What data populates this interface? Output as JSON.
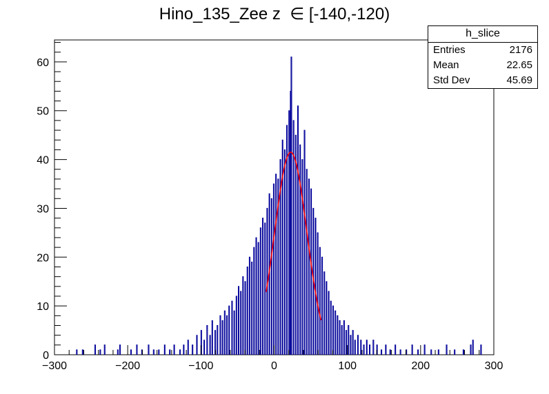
{
  "chart_data": {
    "type": "histogram",
    "title_main": "Hino_135_Zee z",
    "title_symbol": "∈",
    "title_range": "[-140,-120)",
    "xlim": [
      -300,
      300
    ],
    "ylim": [
      0,
      64.5
    ],
    "x_ticks": [
      -300,
      -200,
      -100,
      0,
      100,
      200,
      300
    ],
    "x_tick_labels": [
      "−300",
      "−200",
      "−100",
      "0",
      "100",
      "200",
      "300"
    ],
    "y_ticks": [
      0,
      10,
      20,
      30,
      40,
      50,
      60
    ],
    "y_tick_labels": [
      "0",
      "10",
      "20",
      "30",
      "40",
      "50",
      "60"
    ],
    "bin_width": 1,
    "series": [
      {
        "kind": "histogram",
        "color": "#000099",
        "center": 22.65,
        "sigma": 22,
        "peak": 41.5,
        "bins_x": [
          -270,
          -262,
          -245,
          -238,
          -232,
          -214,
          -211,
          -196,
          -188,
          -181,
          -172,
          -165,
          -158,
          -150,
          -143,
          -137,
          -129,
          -124,
          -118,
          -112,
          -106,
          -100,
          -96,
          -92,
          -88,
          -85,
          -81,
          -78,
          -74,
          -71,
          -68,
          -65,
          -62,
          -58,
          -55,
          -52,
          -49,
          -46,
          -43,
          -40,
          -37,
          -34,
          -31,
          -28,
          -25,
          -22,
          -19,
          -16,
          -13,
          -10,
          -7,
          -4,
          -1,
          2,
          5,
          8,
          11,
          14,
          17,
          20,
          22,
          23,
          26,
          29,
          32,
          35,
          38,
          41,
          44,
          47,
          50,
          53,
          56,
          59,
          62,
          65,
          68,
          71,
          74,
          77,
          80,
          83,
          86,
          89,
          92,
          95,
          98,
          101,
          104,
          107,
          110,
          114,
          118,
          122,
          126,
          130,
          135,
          140,
          146,
          152,
          158,
          165,
          172,
          180,
          188,
          196,
          205,
          214,
          224,
          235,
          246,
          258,
          268,
          271,
          282
        ],
        "bins_y": [
          1,
          1,
          2,
          1,
          2,
          1,
          2,
          1,
          2,
          1,
          2,
          1,
          1,
          2,
          1,
          2,
          1,
          2,
          3,
          2,
          4,
          5,
          3,
          6,
          4,
          7,
          5,
          6,
          8,
          7,
          9,
          8,
          10,
          11,
          9,
          12,
          14,
          13,
          16,
          15,
          18,
          20,
          19,
          22,
          24,
          23,
          26,
          28,
          27,
          30,
          33,
          32,
          35,
          37,
          36,
          40,
          44,
          42,
          47,
          50,
          54,
          61,
          48,
          45,
          51,
          43,
          40,
          46,
          38,
          36,
          34,
          30,
          28,
          25,
          22,
          20,
          17,
          15,
          13,
          11,
          10,
          9,
          8,
          7,
          6,
          7,
          5,
          6,
          4,
          5,
          3,
          4,
          3,
          2,
          3,
          2,
          3,
          2,
          1,
          2,
          1,
          2,
          1,
          1,
          2,
          1,
          2,
          1,
          1,
          2,
          1,
          1,
          2,
          3,
          2
        ]
      },
      {
        "kind": "fit",
        "color": "#ff0000",
        "center": 22.65,
        "sigma": 22,
        "peak": 41.5,
        "x_range": [
          -11,
          64
        ]
      }
    ]
  },
  "statbox": {
    "name": "h_slice",
    "entries_label": "Entries",
    "entries_value": "2176",
    "mean_label": "Mean",
    "mean_value": "22.65",
    "std_label": "Std Dev",
    "std_value": "45.69"
  }
}
